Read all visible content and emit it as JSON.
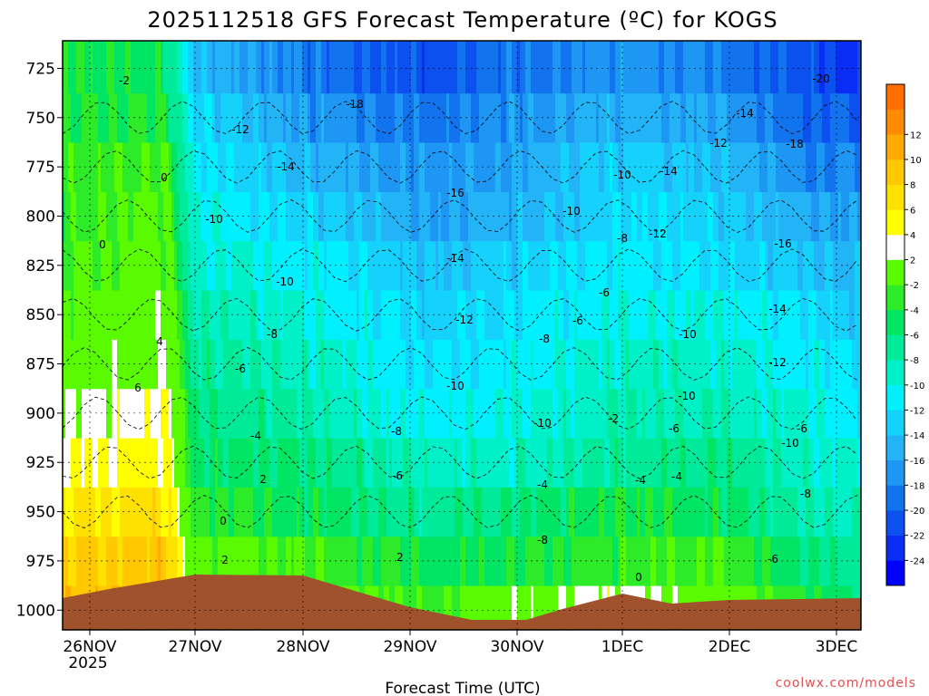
{
  "chart_data": {
    "type": "heatmap",
    "title": "2025112518 GFS Forecast Temperature (ºC) for KOGS",
    "xlabel": "Forecast Time (UTC)",
    "ylabel": "",
    "y_ticks": [
      "725",
      "750",
      "775",
      "800",
      "825",
      "850",
      "875",
      "900",
      "925",
      "950",
      "975",
      "1000"
    ],
    "ylim": [
      1010,
      711
    ],
    "x_ticks": [
      "26NOV",
      "27NOV",
      "28NOV",
      "29NOV",
      "30NOV",
      "1DEC",
      "2DEC",
      "3DEC"
    ],
    "x_year": "2025",
    "colorbar": {
      "labels": [
        "12",
        "10",
        "8",
        "6",
        "4",
        "2",
        "-2",
        "-4",
        "-6",
        "-8",
        "-10",
        "-12",
        "-14",
        "-16",
        "-18",
        "-20",
        "-22",
        "-24"
      ],
      "levels": [
        -26,
        -24,
        -22,
        -20,
        -18,
        -16,
        -14,
        -12,
        -10,
        -8,
        -6,
        -4,
        -2,
        2,
        4,
        6,
        8,
        10,
        12,
        14
      ],
      "colors": [
        "#0000ff",
        "#0a2df5",
        "#0d50f0",
        "#1273ef",
        "#1e96f4",
        "#23b4f8",
        "#14d2fb",
        "#00f0ff",
        "#00f0c8",
        "#00eb99",
        "#00e664",
        "#2deb28",
        "#5afa00",
        "#ffffff",
        "#ffff00",
        "#ffe100",
        "#ffc800",
        "#ffaa00",
        "#ff8c00",
        "#ff6e00"
      ]
    },
    "ground_color": "#a0522d",
    "grid": true,
    "contour_labels": [
      "-2",
      "0",
      "0",
      "2",
      "4",
      "6",
      "2",
      "0",
      "2",
      "-12",
      "-10",
      "-14",
      "-10",
      "-8",
      "-6",
      "-4",
      "-18",
      "-16",
      "-14",
      "-12",
      "-10",
      "-8",
      "-6",
      "-10",
      "-8",
      "-6",
      "-4",
      "-10",
      "-8",
      "-10",
      "-6",
      "-6",
      "-4",
      "-10",
      "-14",
      "-12",
      "-14",
      "-12",
      "-10",
      "-8",
      "-6",
      "-4",
      "-2",
      "0",
      "-20",
      "-18",
      "-16",
      "-14",
      "-12",
      "-10",
      "-8",
      "-6"
    ]
  },
  "watermark": "coolwx.com/models"
}
